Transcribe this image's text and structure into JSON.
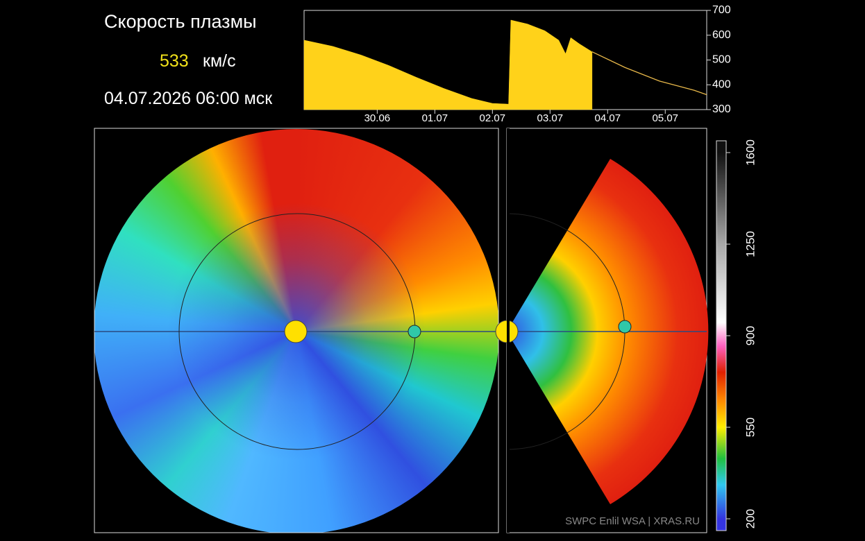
{
  "header": {
    "title": "Скорость плазмы",
    "speed": 533,
    "unit": "км/с",
    "datetime": "04.07.2026 06:00 мск"
  },
  "chart_data": [
    {
      "type": "area",
      "xlim": [
        -0.77,
        6.22
      ],
      "xticks": [
        {
          "value": 0.5,
          "label": "30.06"
        },
        {
          "value": 1.5,
          "label": "01.07"
        },
        {
          "value": 2.5,
          "label": "02.07"
        },
        {
          "value": 3.5,
          "label": "03.07"
        },
        {
          "value": 4.5,
          "label": "04.07"
        },
        {
          "value": 5.5,
          "label": "05.07"
        }
      ],
      "ylim": [
        300,
        700
      ],
      "yticks": [
        300,
        400,
        500,
        600,
        700
      ],
      "series": [
        {
          "color": "#ffd21a",
          "fill": true,
          "x": [
            -0.77,
            -0.27,
            0.22,
            0.7,
            1.18,
            1.66,
            2.14,
            2.5,
            2.78,
            2.82,
            3.11,
            3.41,
            3.65,
            3.77,
            3.86,
            4.01,
            4.23
          ],
          "values": [
            580,
            555,
            520,
            478,
            430,
            385,
            345,
            325,
            322,
            661,
            645,
            618,
            580,
            525,
            590,
            565,
            533
          ]
        },
        {
          "color": "#e8b84a",
          "fill": false,
          "x": [
            4.23,
            4.8,
            5.4,
            6.0,
            6.22
          ],
          "values": [
            533,
            470,
            415,
            378,
            360
          ]
        }
      ]
    },
    {
      "type": "colorbar",
      "ylim": [
        200,
        1600
      ],
      "yticks": [
        200,
        550,
        900,
        1250,
        1600
      ],
      "stops": [
        {
          "value": 200,
          "color": "#3434e0"
        },
        {
          "value": 330,
          "color": "#30c8f0"
        },
        {
          "value": 430,
          "color": "#20c040"
        },
        {
          "value": 550,
          "color": "#ffee00"
        },
        {
          "value": 650,
          "color": "#ff8c00"
        },
        {
          "value": 760,
          "color": "#e02000"
        },
        {
          "value": 860,
          "color": "#ff60c0"
        },
        {
          "value": 950,
          "color": "#ffffff"
        },
        {
          "value": 1250,
          "color": "#a8a8a8"
        },
        {
          "value": 1600,
          "color": "#101010"
        }
      ]
    }
  ],
  "credit": "SWPC Enlil WSA | XRAS.RU"
}
